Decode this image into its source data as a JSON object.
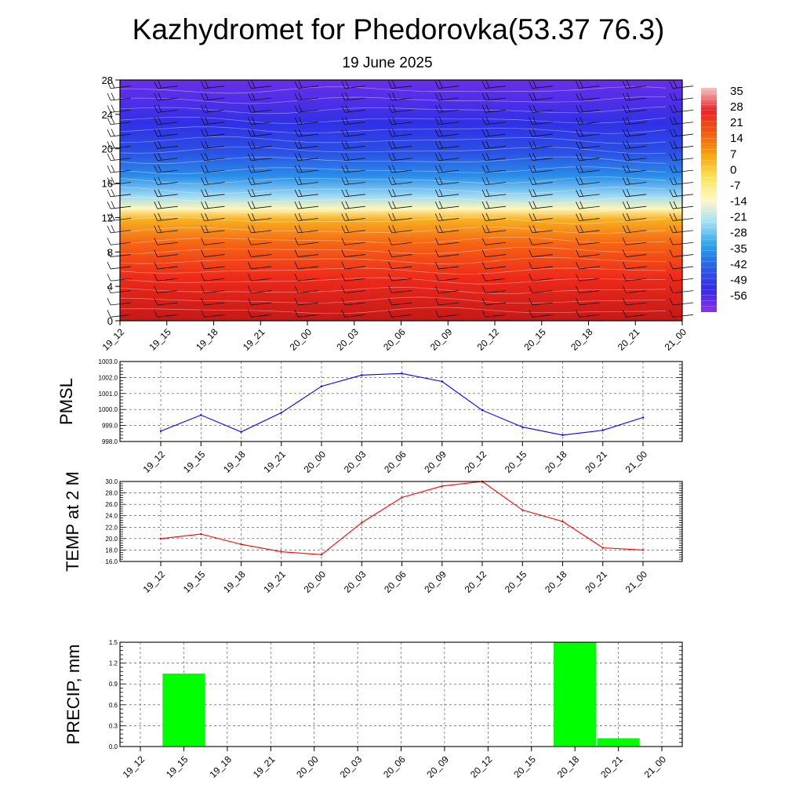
{
  "title": "Kazhydromet for Phedorovka(53.37 76.3)",
  "subtitle": "19 June 2025",
  "time_labels": [
    "19_12",
    "19_15",
    "19_18",
    "19_21",
    "20_00",
    "20_03",
    "20_06",
    "20_09",
    "20_12",
    "20_15",
    "20_18",
    "20_21",
    "21_00"
  ],
  "colorbar": {
    "labels": [
      "35",
      "28",
      "21",
      "14",
      "7",
      "0",
      "-7",
      "-14",
      "-21",
      "-28",
      "-35",
      "-42",
      "-49",
      "-56"
    ],
    "colors": [
      "#f4c4c4",
      "#e8242a",
      "#f05a10",
      "#f5a40e",
      "#fbe45a",
      "#fff8c8",
      "#a4e0f4",
      "#2aa4e8",
      "#2a5ee4",
      "#3a2ae4",
      "#8a32e4"
    ]
  },
  "chart_data": [
    {
      "type": "heatmap",
      "name": "cross-section",
      "ylim": [
        0,
        28
      ],
      "yticks": [
        "0",
        "4",
        "8",
        "12",
        "16",
        "20",
        "24",
        "28"
      ],
      "x": [
        "19_12",
        "19_15",
        "19_18",
        "19_21",
        "20_00",
        "20_03",
        "20_06",
        "20_09",
        "20_12",
        "20_15",
        "20_18",
        "20_21",
        "21_00"
      ],
      "colorscale_range": [
        -56,
        35
      ]
    },
    {
      "type": "line",
      "ylabel": "PMSL",
      "ylim": [
        998.0,
        1003.0
      ],
      "yticks": [
        "998.0",
        "999.0",
        "1000.0",
        "1001.0",
        "1002.0",
        "1003.0"
      ],
      "x": [
        "19_12",
        "19_15",
        "19_18",
        "19_21",
        "20_00",
        "20_03",
        "20_06",
        "20_09",
        "20_12",
        "20_15",
        "20_18",
        "20_21",
        "21_00"
      ],
      "values": [
        998.65,
        999.65,
        998.6,
        999.8,
        1001.45,
        1002.15,
        1002.25,
        1001.75,
        999.95,
        998.9,
        998.4,
        998.7,
        999.5
      ],
      "color": "#0000ff"
    },
    {
      "type": "line",
      "ylabel": "TEMP at 2 M",
      "ylim": [
        16.0,
        30.0
      ],
      "yticks": [
        "16.0",
        "18.0",
        "20.0",
        "22.0",
        "24.0",
        "26.0",
        "28.0",
        "30.0"
      ],
      "x": [
        "19_12",
        "19_15",
        "19_18",
        "19_21",
        "20_00",
        "20_03",
        "20_06",
        "20_09",
        "20_12",
        "20_15",
        "20_18",
        "20_21",
        "21_00"
      ],
      "values": [
        20.0,
        20.8,
        19.0,
        17.7,
        17.2,
        22.8,
        27.2,
        29.2,
        30.0,
        25.0,
        23.0,
        18.4,
        18.0
      ],
      "color": "#ff0000"
    },
    {
      "type": "bar",
      "ylabel": "PRECIP, mm",
      "ylim": [
        0.0,
        1.5
      ],
      "yticks": [
        "0.0",
        "0.3",
        "0.6",
        "0.9",
        "1.2",
        "1.5"
      ],
      "categories": [
        "19_12",
        "19_15",
        "19_18",
        "19_21",
        "20_00",
        "20_03",
        "20_06",
        "20_09",
        "20_12",
        "20_15",
        "20_18",
        "20_21",
        "21_00"
      ],
      "values": [
        0,
        1.05,
        0,
        0,
        0,
        0,
        0,
        0,
        0,
        0,
        1.5,
        0.12,
        0
      ],
      "color": "#00ff00"
    }
  ]
}
